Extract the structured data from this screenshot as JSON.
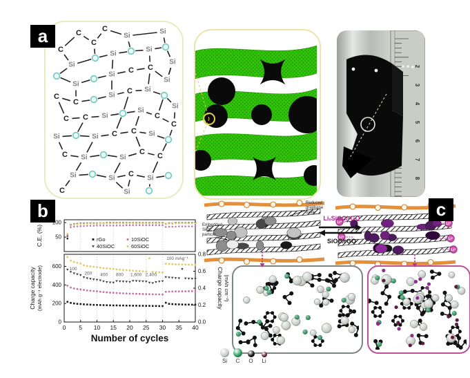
{
  "panels": {
    "a": {
      "label": "a"
    },
    "b": {
      "label": "b"
    },
    "c": {
      "label": "c"
    }
  },
  "panel_a": {
    "network": {
      "atoms": [
        [
          "C",
          48,
          16
        ],
        [
          "C",
          86,
          10
        ],
        [
          "C",
          70,
          30
        ],
        [
          "Si",
          118,
          20
        ],
        [
          "Si",
          170,
          14
        ],
        [
          "C",
          22,
          40
        ],
        [
          "Si",
          38,
          62
        ],
        [
          "O",
          72,
          52
        ],
        [
          "Si",
          98,
          46
        ],
        [
          "O",
          124,
          42
        ],
        [
          "Si",
          150,
          40
        ],
        [
          "O",
          174,
          36
        ],
        [
          "Si",
          184,
          58
        ],
        [
          "O",
          16,
          78
        ],
        [
          "Si",
          44,
          90
        ],
        [
          "O",
          70,
          82
        ],
        [
          "Si",
          96,
          76
        ],
        [
          "C",
          124,
          70
        ],
        [
          "C",
          152,
          66
        ],
        [
          "Si",
          176,
          84
        ],
        [
          "C",
          16,
          108
        ],
        [
          "C",
          44,
          116
        ],
        [
          "O",
          70,
          112
        ],
        [
          "Si",
          96,
          106
        ],
        [
          "C",
          122,
          100
        ],
        [
          "Si",
          148,
          98
        ],
        [
          "O",
          172,
          106
        ],
        [
          "Si",
          188,
          122
        ],
        [
          "C",
          30,
          140
        ],
        [
          "C",
          58,
          138
        ],
        [
          "Si",
          86,
          136
        ],
        [
          "O",
          112,
          132
        ],
        [
          "Si",
          138,
          128
        ],
        [
          "C",
          162,
          136
        ],
        [
          "C",
          186,
          148
        ],
        [
          "Si",
          16,
          166
        ],
        [
          "O",
          44,
          164
        ],
        [
          "Si",
          72,
          166
        ],
        [
          "C",
          100,
          162
        ],
        [
          "C",
          128,
          158
        ],
        [
          "Si",
          154,
          162
        ],
        [
          "O",
          178,
          170
        ],
        [
          "C",
          28,
          192
        ],
        [
          "Si",
          56,
          196
        ],
        [
          "O",
          84,
          192
        ],
        [
          "Si",
          112,
          196
        ],
        [
          "C",
          140,
          188
        ],
        [
          "C",
          166,
          194
        ],
        [
          "Si",
          40,
          222
        ],
        [
          "O",
          68,
          220
        ],
        [
          "Si",
          96,
          226
        ],
        [
          "C",
          124,
          220
        ],
        [
          "Si",
          152,
          226
        ],
        [
          "O",
          178,
          222
        ],
        [
          "C",
          24,
          244
        ],
        [
          "Si",
          118,
          246
        ],
        [
          "O",
          150,
          244
        ]
      ],
      "bonds": [
        [
          0,
          2
        ],
        [
          1,
          2
        ],
        [
          1,
          3
        ],
        [
          3,
          4
        ],
        [
          5,
          6
        ],
        [
          6,
          7
        ],
        [
          7,
          8
        ],
        [
          8,
          9
        ],
        [
          9,
          10
        ],
        [
          10,
          11
        ],
        [
          11,
          12
        ],
        [
          13,
          14
        ],
        [
          14,
          15
        ],
        [
          15,
          16
        ],
        [
          16,
          17
        ],
        [
          17,
          18
        ],
        [
          18,
          19
        ],
        [
          19,
          12
        ],
        [
          20,
          21
        ],
        [
          21,
          22
        ],
        [
          22,
          23
        ],
        [
          23,
          24
        ],
        [
          24,
          25
        ],
        [
          25,
          26
        ],
        [
          26,
          27
        ],
        [
          28,
          29
        ],
        [
          29,
          30
        ],
        [
          30,
          31
        ],
        [
          31,
          32
        ],
        [
          32,
          33
        ],
        [
          33,
          34
        ],
        [
          35,
          36
        ],
        [
          36,
          37
        ],
        [
          37,
          38
        ],
        [
          38,
          39
        ],
        [
          39,
          40
        ],
        [
          40,
          41
        ],
        [
          42,
          43
        ],
        [
          43,
          44
        ],
        [
          44,
          45
        ],
        [
          45,
          46
        ],
        [
          46,
          47
        ],
        [
          48,
          49
        ],
        [
          49,
          50
        ],
        [
          50,
          51
        ],
        [
          51,
          52
        ],
        [
          52,
          53
        ],
        [
          0,
          5
        ],
        [
          2,
          7
        ],
        [
          3,
          9
        ],
        [
          4,
          11
        ],
        [
          6,
          13
        ],
        [
          8,
          16
        ],
        [
          10,
          18
        ],
        [
          12,
          19
        ],
        [
          14,
          21
        ],
        [
          16,
          23
        ],
        [
          18,
          25
        ],
        [
          20,
          28
        ],
        [
          24,
          31
        ],
        [
          26,
          33
        ],
        [
          27,
          34
        ],
        [
          29,
          36
        ],
        [
          31,
          38
        ],
        [
          32,
          39
        ],
        [
          34,
          41
        ],
        [
          35,
          42
        ],
        [
          37,
          43
        ],
        [
          39,
          46
        ],
        [
          41,
          47
        ],
        [
          43,
          48
        ],
        [
          45,
          50
        ],
        [
          47,
          52
        ],
        [
          48,
          54
        ],
        [
          50,
          55
        ],
        [
          51,
          55
        ],
        [
          52,
          56
        ]
      ],
      "colors": {
        "si_text": "#7d837d",
        "c_text": "#1c1c1c",
        "o_fill": "#e9faf6",
        "o_stroke": "#6fc9bf",
        "bond": "#222222"
      }
    },
    "composite_colors": {
      "sheet_green": "#31c40b",
      "sheet_dot": "#1f8f00",
      "particle_black": "#0a0a0a",
      "marker_yellow": "#e6d04a"
    },
    "photo": {
      "ruler_numbers": [
        "2",
        "3",
        "4",
        "5",
        "6",
        "7",
        "8"
      ]
    }
  },
  "chart_data": {
    "type": "scatter",
    "xlabel": "Number of cycles",
    "ylabel_ce": "C.E. (%)",
    "ylabel_left_1": "Charge capacity",
    "ylabel_left_2": "(mAh g⁻¹ electrode)",
    "ylabel_right_1": "Charge capacity",
    "ylabel_right_2": "(mAh cm⁻²)",
    "xlim": [
      0,
      40
    ],
    "x_ticks": [
      0,
      5,
      10,
      15,
      20,
      25,
      30,
      35,
      40
    ],
    "ylim_left": [
      0,
      730
    ],
    "y_ticks_left": [
      0,
      200,
      400,
      600
    ],
    "ylim_right": [
      0,
      0.8
    ],
    "y_ticks_right": [
      "0.0",
      "0.2",
      "0.4",
      "0.6",
      "0.8"
    ],
    "ce_ticks": [
      50,
      100
    ],
    "grid_x": [
      5,
      10,
      15,
      20,
      25,
      30
    ],
    "rate_annotations": [
      {
        "x": 1.6,
        "y": 560,
        "text": "100"
      },
      {
        "x": 6.2,
        "y": 512,
        "text": "200"
      },
      {
        "x": 11.0,
        "y": 497,
        "text": "400"
      },
      {
        "x": 15.8,
        "y": 494,
        "text": "800"
      },
      {
        "x": 20.2,
        "y": 494,
        "text": "1,600"
      },
      {
        "x": 24.8,
        "y": 494,
        "text": "2,400"
      },
      {
        "x": 31.2,
        "y": 672,
        "text": "100 mAg⁻¹"
      }
    ],
    "series": [
      {
        "name": "rGo",
        "color": "#1a1a1a",
        "marker": "square",
        "capacity": [
          218,
          206,
          200,
          196,
          194,
          191,
          189,
          187,
          185,
          184,
          183,
          182,
          181,
          180,
          179,
          179,
          178,
          178,
          177,
          177,
          176,
          176,
          175,
          175,
          174,
          174,
          173,
          173,
          172,
          172,
          208,
          196,
          193,
          191,
          190,
          189,
          188,
          188,
          187,
          187
        ],
        "ce": [
          45,
          92,
          95,
          96,
          97,
          97,
          98,
          98,
          98,
          98,
          98,
          98,
          99,
          99,
          99,
          99,
          99,
          99,
          99,
          99,
          99,
          99,
          99,
          99,
          99,
          99,
          99,
          99,
          99,
          99,
          96,
          98,
          98,
          99,
          99,
          99,
          99,
          99,
          99,
          99
        ]
      },
      {
        "name": "10SiOC",
        "color": "#c4729f",
        "marker": "circle",
        "capacity": [
          392,
          372,
          362,
          356,
          351,
          346,
          341,
          337,
          334,
          331,
          327,
          323,
          320,
          317,
          315,
          313,
          311,
          309,
          308,
          306,
          305,
          304,
          303,
          302,
          301,
          300,
          299,
          298,
          298,
          297,
          326,
          328,
          329,
          330,
          330,
          331,
          331,
          332,
          332,
          333
        ],
        "ce": [
          58,
          84,
          86,
          87,
          88,
          88,
          89,
          89,
          89,
          90,
          90,
          90,
          90,
          90,
          90,
          90,
          90,
          90,
          91,
          91,
          91,
          91,
          91,
          91,
          91,
          91,
          91,
          91,
          91,
          91,
          85,
          86,
          86,
          86,
          87,
          87,
          87,
          87,
          87,
          87
        ]
      },
      {
        "name": "40SiOC",
        "color": "#3d3d3d",
        "marker": "tri",
        "capacity": [
          565,
          540,
          525,
          515,
          505,
          482,
          472,
          465,
          460,
          455,
          448,
          438,
          430,
          426,
          424,
          441,
          438,
          436,
          434,
          432,
          444,
          442,
          440,
          438,
          436,
          424,
          420,
          430,
          436,
          440,
          484,
          480,
          477,
          474,
          472,
          570,
          470,
          468,
          466,
          465
        ],
        "ce": [
          52,
          90,
          93,
          95,
          96,
          96,
          97,
          97,
          97,
          97,
          98,
          98,
          98,
          98,
          98,
          98,
          98,
          98,
          98,
          98,
          98,
          98,
          98,
          98,
          98,
          98,
          98,
          98,
          98,
          98,
          95,
          97,
          97,
          98,
          98,
          98,
          98,
          98,
          98,
          98
        ]
      },
      {
        "name": "60SiOC",
        "color": "#dfca67",
        "marker": "circle",
        "capacity": [
          700,
          662,
          648,
          638,
          630,
          612,
          604,
          599,
          596,
          592,
          586,
          581,
          578,
          575,
          572,
          568,
          564,
          561,
          559,
          557,
          554,
          551,
          549,
          547,
          545,
          688,
          540,
          538,
          536,
          534,
          628,
          626,
          624,
          622,
          621,
          620,
          619,
          618,
          617,
          616
        ],
        "ce": [
          62,
          91,
          94,
          95,
          96,
          96,
          97,
          97,
          97,
          98,
          98,
          98,
          98,
          98,
          98,
          98,
          98,
          98,
          98,
          98,
          98,
          98,
          98,
          98,
          98,
          98,
          98,
          98,
          98,
          98,
          96,
          97,
          98,
          98,
          98,
          98,
          98,
          98,
          98,
          98
        ]
      }
    ]
  },
  "panel_c": {
    "label_reduced_graphene_oxide": "Reduced graphene oxide",
    "label_embedded_sioc_particle": "Embedded SiOC particle",
    "reaction_top": "LiₓSiOC/rGO",
    "reaction_bottom": "SiOC/rGO",
    "li_ion": "Li⁺",
    "colors": {
      "ribbon_orange": "#e2903c",
      "li_pink": "#d650b0",
      "arrow_magenta": "#c03090"
    },
    "atom_legend": [
      {
        "label": "Si",
        "color": "#c8cec9",
        "size": 13
      },
      {
        "label": "C",
        "color": "#2f9e63",
        "size": 13
      },
      {
        "label": "O",
        "color": "#121212",
        "size": 10
      },
      {
        "label": "Li",
        "color": "#6e1f33",
        "size": 8
      }
    ]
  }
}
